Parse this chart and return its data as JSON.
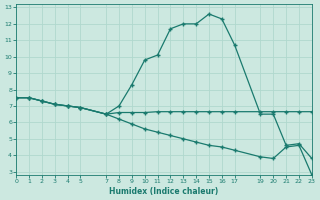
{
  "xlabel": "Humidex (Indice chaleur)",
  "bg_color": "#cce8e0",
  "line_color": "#1a7a6e",
  "grid_color": "#b0d8ce",
  "line1_x": [
    0,
    1,
    2,
    3,
    4,
    5,
    7,
    8,
    9,
    10,
    11,
    12,
    13,
    14,
    15,
    16,
    17,
    19,
    20,
    21,
    22,
    23
  ],
  "line1_y": [
    7.5,
    7.5,
    7.3,
    7.1,
    7.0,
    6.9,
    6.5,
    7.0,
    8.3,
    9.8,
    10.1,
    11.7,
    12.0,
    12.0,
    12.6,
    12.3,
    10.7,
    6.5,
    6.5,
    4.6,
    4.7,
    3.8
  ],
  "line2_x": [
    0,
    1,
    2,
    3,
    4,
    5,
    7,
    8,
    9,
    10,
    11,
    12,
    13,
    14,
    15,
    16,
    17,
    19,
    20,
    21,
    22,
    23
  ],
  "line2_y": [
    7.5,
    7.5,
    7.3,
    7.1,
    7.0,
    6.9,
    6.5,
    6.6,
    6.6,
    6.6,
    6.65,
    6.65,
    6.65,
    6.65,
    6.65,
    6.65,
    6.65,
    6.65,
    6.65,
    6.65,
    6.65,
    6.65
  ],
  "line3_x": [
    0,
    1,
    2,
    3,
    4,
    5,
    7,
    8,
    9,
    10,
    11,
    12,
    13,
    14,
    15,
    16,
    17,
    19,
    20,
    21,
    22,
    23
  ],
  "line3_y": [
    7.5,
    7.5,
    7.3,
    7.1,
    7.0,
    6.9,
    6.5,
    6.2,
    5.9,
    5.6,
    5.4,
    5.2,
    5.0,
    4.8,
    4.6,
    4.5,
    4.3,
    3.9,
    3.8,
    4.5,
    4.6,
    2.8
  ],
  "xlim": [
    0,
    23
  ],
  "ylim": [
    2.8,
    13.2
  ],
  "xtick_positions": [
    0,
    1,
    2,
    3,
    4,
    5,
    7,
    8,
    9,
    10,
    11,
    12,
    13,
    14,
    15,
    16,
    17,
    19,
    20,
    21,
    22,
    23
  ],
  "xtick_labels": [
    "0",
    "1",
    "2",
    "3",
    "4",
    "5",
    "7",
    "8",
    "9",
    "10",
    "11",
    "12",
    "13",
    "14",
    "15",
    "16",
    "17",
    "19",
    "20",
    "21",
    "22",
    "23"
  ],
  "yticks": [
    3,
    4,
    5,
    6,
    7,
    8,
    9,
    10,
    11,
    12,
    13
  ],
  "marker": "+",
  "markersize": 3.5,
  "linewidth": 0.9
}
